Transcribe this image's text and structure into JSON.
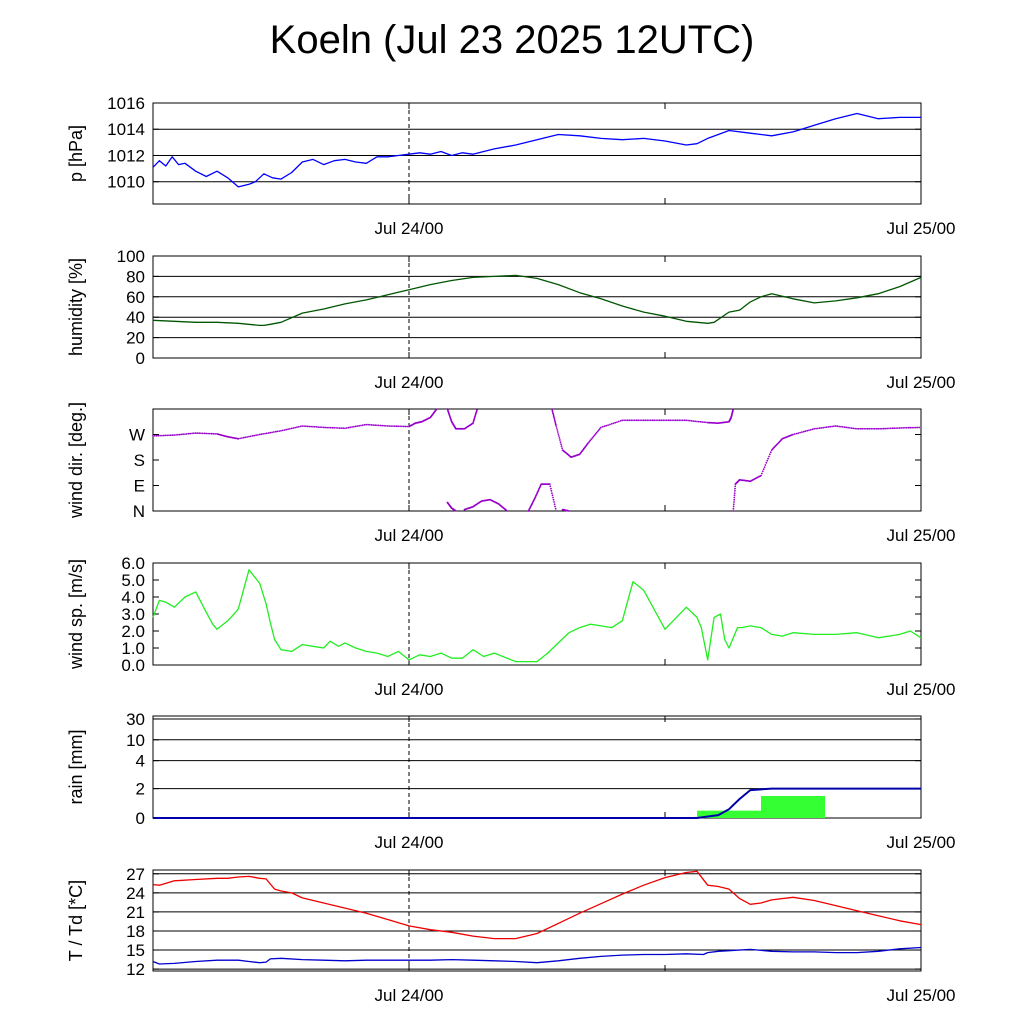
{
  "title": "Koeln (Jul 23 2025 12UTC)",
  "x_axis": {
    "ticks": [
      {
        "x": 12,
        "label": "Jul 24/00"
      },
      {
        "x": 36,
        "label": "Jul 25/00"
      }
    ],
    "range_hours": [
      0,
      36
    ]
  },
  "chart_data": [
    {
      "type": "line",
      "id": "pressure",
      "ylabel": "p [hPa]",
      "ylim": [
        1008.3,
        1016.0
      ],
      "yticks": [
        1010,
        1012,
        1014,
        1016
      ],
      "grid": true,
      "color": "#0000ff",
      "series": [
        {
          "x": [
            0,
            0.3,
            0.6,
            0.9,
            1.2,
            1.5,
            2,
            2.5,
            3,
            3.5,
            4,
            4.5,
            4.8,
            5.2,
            5.6,
            6,
            6.5,
            7,
            7.5,
            8,
            8.5,
            9,
            9.5,
            10,
            10.5,
            11,
            11.5,
            12,
            12.5,
            13,
            13.5,
            14,
            14.5,
            15,
            15.5,
            16,
            17,
            18,
            19,
            20,
            21,
            22,
            23,
            24,
            25,
            25.5,
            26,
            26.5,
            27,
            28,
            29,
            30,
            31,
            32,
            33,
            34,
            35,
            36
          ],
          "y": [
            1011.1,
            1011.6,
            1011.2,
            1011.9,
            1011.3,
            1011.4,
            1010.8,
            1010.4,
            1010.8,
            1010.3,
            1009.6,
            1009.8,
            1010.0,
            1010.6,
            1010.3,
            1010.2,
            1010.7,
            1011.5,
            1011.7,
            1011.3,
            1011.6,
            1011.7,
            1011.5,
            1011.4,
            1011.9,
            1011.9,
            1012.0,
            1012.1,
            1012.2,
            1012.1,
            1012.3,
            1012.0,
            1012.2,
            1012.1,
            1012.3,
            1012.5,
            1012.8,
            1013.2,
            1013.6,
            1013.5,
            1013.3,
            1013.2,
            1013.3,
            1013.1,
            1012.8,
            1012.9,
            1013.3,
            1013.6,
            1013.9,
            1013.7,
            1013.5,
            1013.8,
            1014.3,
            1014.8,
            1015.2,
            1014.8,
            1014.9,
            1014.9
          ]
        }
      ]
    },
    {
      "type": "line",
      "id": "humidity",
      "ylabel": "humidity [%]",
      "ylim": [
        0,
        100
      ],
      "yticks": [
        0,
        20,
        40,
        60,
        80,
        100
      ],
      "grid": true,
      "color": "#005500",
      "series": [
        {
          "x": [
            0,
            1,
            2,
            3,
            4,
            5,
            5.2,
            5.5,
            6,
            7,
            8,
            9,
            10,
            11,
            12,
            13,
            14,
            15,
            16,
            17,
            18,
            19,
            20,
            21,
            22,
            23,
            24,
            25,
            26,
            26.3,
            27,
            27.5,
            28,
            28.5,
            29,
            30,
            31,
            32,
            33,
            34,
            35,
            36
          ],
          "y": [
            37,
            36,
            35,
            35,
            34,
            32,
            32,
            33,
            35,
            44,
            48,
            53,
            57,
            62,
            67,
            72,
            76,
            79,
            80,
            81,
            78,
            72,
            64,
            58,
            51,
            45,
            41,
            36,
            34,
            35,
            45,
            47,
            55,
            60,
            63,
            58,
            54,
            56,
            59,
            63,
            70,
            79
          ]
        }
      ]
    },
    {
      "type": "scatter",
      "id": "wind-direction",
      "ylabel": "wind dir. [deg.]",
      "ylim": [
        0,
        360
      ],
      "ytick_labels": [
        "N",
        "E",
        "S",
        "W"
      ],
      "ytick_values": [
        0,
        90,
        180,
        270
      ],
      "color": "#9900cc",
      "series": [
        {
          "x": [
            0,
            1,
            2,
            3,
            3.5,
            4,
            5,
            6,
            7,
            8,
            9,
            10,
            11,
            12,
            12.3,
            12.6,
            13,
            13.3
          ],
          "y": [
            265,
            268,
            275,
            272,
            262,
            255,
            270,
            283,
            300,
            295,
            292,
            305,
            300,
            298,
            310,
            315,
            330,
            360
          ]
        },
        {
          "x": [
            13.8,
            14.0,
            14.2,
            14.6,
            15.0,
            15.2
          ],
          "y": [
            360,
            315,
            290,
            290,
            310,
            360
          ]
        },
        {
          "x": [
            18.7,
            18.9,
            19.2,
            19.6,
            20.0,
            20.4,
            21,
            22,
            23,
            24,
            25,
            26,
            26.5,
            27,
            27.1,
            27.2
          ],
          "y": [
            360,
            300,
            215,
            190,
            200,
            240,
            295,
            320,
            320,
            320,
            320,
            312,
            310,
            315,
            330,
            360
          ]
        },
        {
          "x": [
            27.2,
            27.3,
            27.5,
            28,
            28.5,
            29,
            29.5,
            30,
            31,
            32,
            33,
            34,
            35,
            36
          ],
          "y": [
            0,
            95,
            110,
            105,
            125,
            215,
            255,
            270,
            290,
            300,
            290,
            290,
            293,
            295
          ]
        },
        {
          "x": [
            13.8,
            14.0,
            14.2
          ],
          "y": [
            30,
            10,
            0
          ]
        },
        {
          "x": [
            14.6,
            15.0,
            15.4,
            15.8,
            16.2,
            16.6
          ],
          "y": [
            5,
            15,
            35,
            40,
            25,
            0
          ]
        },
        {
          "x": [
            17.6,
            17.9,
            18.2,
            18.6,
            18.9
          ],
          "y": [
            0,
            45,
            95,
            95,
            0
          ]
        },
        {
          "x": [
            19.2,
            19.5
          ],
          "y": [
            5,
            0
          ]
        }
      ]
    },
    {
      "type": "line",
      "id": "wind-speed",
      "ylabel": "wind sp. [m/s]",
      "ylim": [
        0,
        6.0
      ],
      "yticks": [
        0,
        1,
        2,
        3,
        4,
        5,
        6
      ],
      "ytick_labels": [
        "0.0",
        "1.0",
        "2.0",
        "3.0",
        "4.0",
        "5.0",
        "6.0"
      ],
      "color": "#22ee22",
      "series": [
        {
          "x": [
            0,
            0.3,
            0.6,
            1,
            1.5,
            2,
            2.5,
            2.8,
            3,
            3.5,
            3.8,
            4,
            4.5,
            5,
            5.3,
            5.5,
            5.7,
            6,
            6.5,
            7,
            7.5,
            8,
            8.3,
            8.7,
            9,
            9.5,
            10,
            10.5,
            11,
            11.5,
            12,
            12.5,
            13,
            13.5,
            14,
            14.5,
            15,
            15.5,
            16,
            17,
            18,
            18.5,
            19,
            19.5,
            20,
            20.5,
            21,
            21.5,
            22,
            22.5,
            23,
            24,
            25,
            25.5,
            25.7,
            26,
            26.3,
            26.6,
            26.8,
            27,
            27.2,
            27.4,
            27.6,
            28,
            28.5,
            29,
            29.5,
            30,
            31,
            32,
            33,
            34,
            35,
            35.5,
            36
          ],
          "y": [
            2.8,
            3.8,
            3.7,
            3.4,
            4.0,
            4.3,
            3.1,
            2.4,
            2.1,
            2.6,
            3.0,
            3.3,
            5.6,
            4.8,
            3.6,
            2.5,
            1.5,
            0.9,
            0.8,
            1.2,
            1.1,
            1.0,
            1.4,
            1.1,
            1.3,
            1.0,
            0.8,
            0.7,
            0.5,
            0.8,
            0.3,
            0.6,
            0.5,
            0.7,
            0.4,
            0.4,
            0.9,
            0.5,
            0.7,
            0.2,
            0.2,
            0.7,
            1.3,
            1.9,
            2.2,
            2.4,
            2.3,
            2.2,
            2.6,
            4.9,
            4.4,
            2.1,
            3.4,
            2.8,
            2.2,
            0.3,
            2.8,
            3.0,
            1.5,
            1.0,
            1.6,
            2.2,
            2.2,
            2.3,
            2.2,
            1.8,
            1.7,
            1.9,
            1.8,
            1.8,
            1.9,
            1.6,
            1.8,
            2.0,
            1.6
          ]
        }
      ]
    },
    {
      "type": "bar",
      "id": "rain",
      "ylabel": "rain [mm]",
      "ytick_labels": [
        "0",
        "2",
        "4",
        "10",
        "30"
      ],
      "ytick_values": [
        0,
        2,
        4,
        10,
        30
      ],
      "y_scale": "nonlinear (0,2,4,10,30 at equal spacing steps)",
      "bar_color": "#33ff33",
      "line_color": "#0000aa",
      "bars": [
        {
          "x_start": 25.5,
          "x_end": 28.5,
          "value": 0.5
        },
        {
          "x_start": 28.5,
          "x_end": 31.5,
          "value": 1.5
        }
      ],
      "accumulated": {
        "x": [
          0,
          25.5,
          26.5,
          27,
          27.5,
          28,
          29,
          36
        ],
        "y": [
          0,
          0,
          0.2,
          0.6,
          1.3,
          1.9,
          2.0,
          2.0
        ]
      }
    },
    {
      "type": "line",
      "id": "temperature",
      "ylabel": "T / Td [*C]",
      "ylim": [
        11.7,
        27.6
      ],
      "yticks": [
        12,
        15,
        18,
        21,
        24,
        27
      ],
      "grid": true,
      "series": [
        {
          "color": "#ee0000",
          "x": [
            0,
            0.3,
            1,
            2,
            3,
            3.5,
            4,
            4.5,
            5,
            5.3,
            5.5,
            5.7,
            6,
            6.5,
            7,
            8,
            9,
            10,
            11,
            12,
            13,
            14,
            15,
            16,
            17,
            18,
            19,
            20,
            21,
            22,
            23,
            24,
            25,
            25.5,
            26,
            26.5,
            27,
            27.5,
            28,
            28.5,
            29,
            30,
            31,
            32,
            33,
            34,
            35,
            36
          ],
          "y": [
            25.3,
            25.2,
            25.9,
            26.1,
            26.3,
            26.3,
            26.5,
            26.6,
            26.3,
            26.2,
            25.4,
            24.6,
            24.3,
            24.0,
            23.2,
            22.4,
            21.6,
            20.8,
            19.8,
            18.8,
            18.2,
            17.8,
            17.2,
            16.8,
            16.8,
            17.6,
            19.2,
            20.8,
            22.3,
            23.8,
            25.2,
            26.4,
            27.2,
            27.4,
            25.2,
            25.0,
            24.6,
            23.1,
            22.2,
            22.4,
            22.9,
            23.3,
            22.8,
            22.0,
            21.2,
            20.4,
            19.6,
            19.0
          ]
        },
        {
          "color": "#0000cc",
          "x": [
            0,
            0.3,
            1,
            2,
            3,
            4,
            4.5,
            5,
            5.3,
            5.5,
            6,
            7,
            8,
            9,
            10,
            11,
            12,
            13,
            14,
            15,
            16,
            17,
            18,
            19,
            20,
            21,
            22,
            23,
            24,
            25,
            25.8,
            26,
            26.5,
            27,
            28,
            29,
            30,
            31,
            32,
            33,
            34,
            35,
            36
          ],
          "y": [
            13.2,
            12.8,
            12.9,
            13.2,
            13.4,
            13.4,
            13.2,
            13.0,
            13.1,
            13.6,
            13.7,
            13.5,
            13.4,
            13.3,
            13.4,
            13.4,
            13.4,
            13.4,
            13.5,
            13.4,
            13.3,
            13.2,
            13.0,
            13.3,
            13.7,
            14.0,
            14.2,
            14.3,
            14.3,
            14.4,
            14.3,
            14.6,
            14.8,
            14.9,
            15.1,
            14.8,
            14.7,
            14.7,
            14.6,
            14.6,
            14.8,
            15.2,
            15.4
          ]
        }
      ]
    }
  ]
}
